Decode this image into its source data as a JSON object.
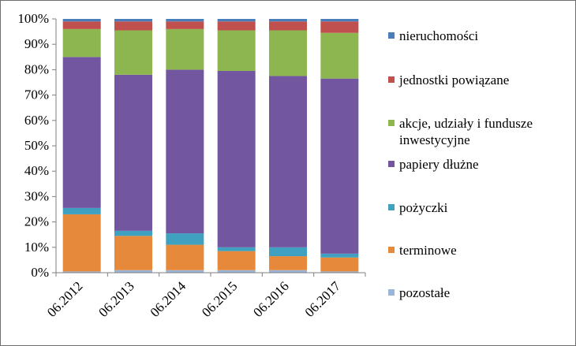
{
  "chart_data": {
    "type": "bar",
    "stacked": true,
    "normalized": true,
    "categories": [
      "06.2012",
      "06.2013",
      "06.2014",
      "06.2015",
      "06.2016",
      "06.2017"
    ],
    "ylim": [
      0,
      100
    ],
    "yticks": [
      "0%",
      "10%",
      "20%",
      "30%",
      "40%",
      "50%",
      "60%",
      "70%",
      "80%",
      "90%",
      "100%"
    ],
    "legend_position": "right",
    "series": [
      {
        "name": "pozostałe",
        "color": "#9bb5d9",
        "values": [
          0.5,
          1,
          1,
          1,
          1,
          0.5
        ]
      },
      {
        "name": "terminowe",
        "color": "#e6893a",
        "values": [
          22.5,
          13.5,
          10,
          7.5,
          5.5,
          5.5
        ]
      },
      {
        "name": "pożyczki",
        "color": "#3fa1bf",
        "values": [
          2.5,
          2,
          4.5,
          1.5,
          3.5,
          1.5
        ]
      },
      {
        "name": "papiery dłużne",
        "color": "#7356a0",
        "values": [
          59.5,
          61.5,
          64.5,
          69.5,
          67.5,
          69
        ]
      },
      {
        "name": "akcje, udziały i fundusze inwestycyjne",
        "color": "#8db550",
        "values": [
          11,
          17.5,
          16,
          16,
          18,
          18
        ]
      },
      {
        "name": "jednostki powiązane",
        "color": "#c0504d",
        "values": [
          3,
          3.5,
          3,
          3.5,
          3.5,
          4.5
        ]
      },
      {
        "name": "nieruchomości",
        "color": "#4a7ebb",
        "values": [
          1,
          1,
          1,
          1,
          1,
          1
        ]
      }
    ],
    "legend_order": [
      "nieruchomości",
      "jednostki powiązane",
      "akcje, udziały i fundusze inwestycyjne",
      "papiery dłużne",
      "pożyczki",
      "terminowe",
      "pozostałe"
    ]
  }
}
